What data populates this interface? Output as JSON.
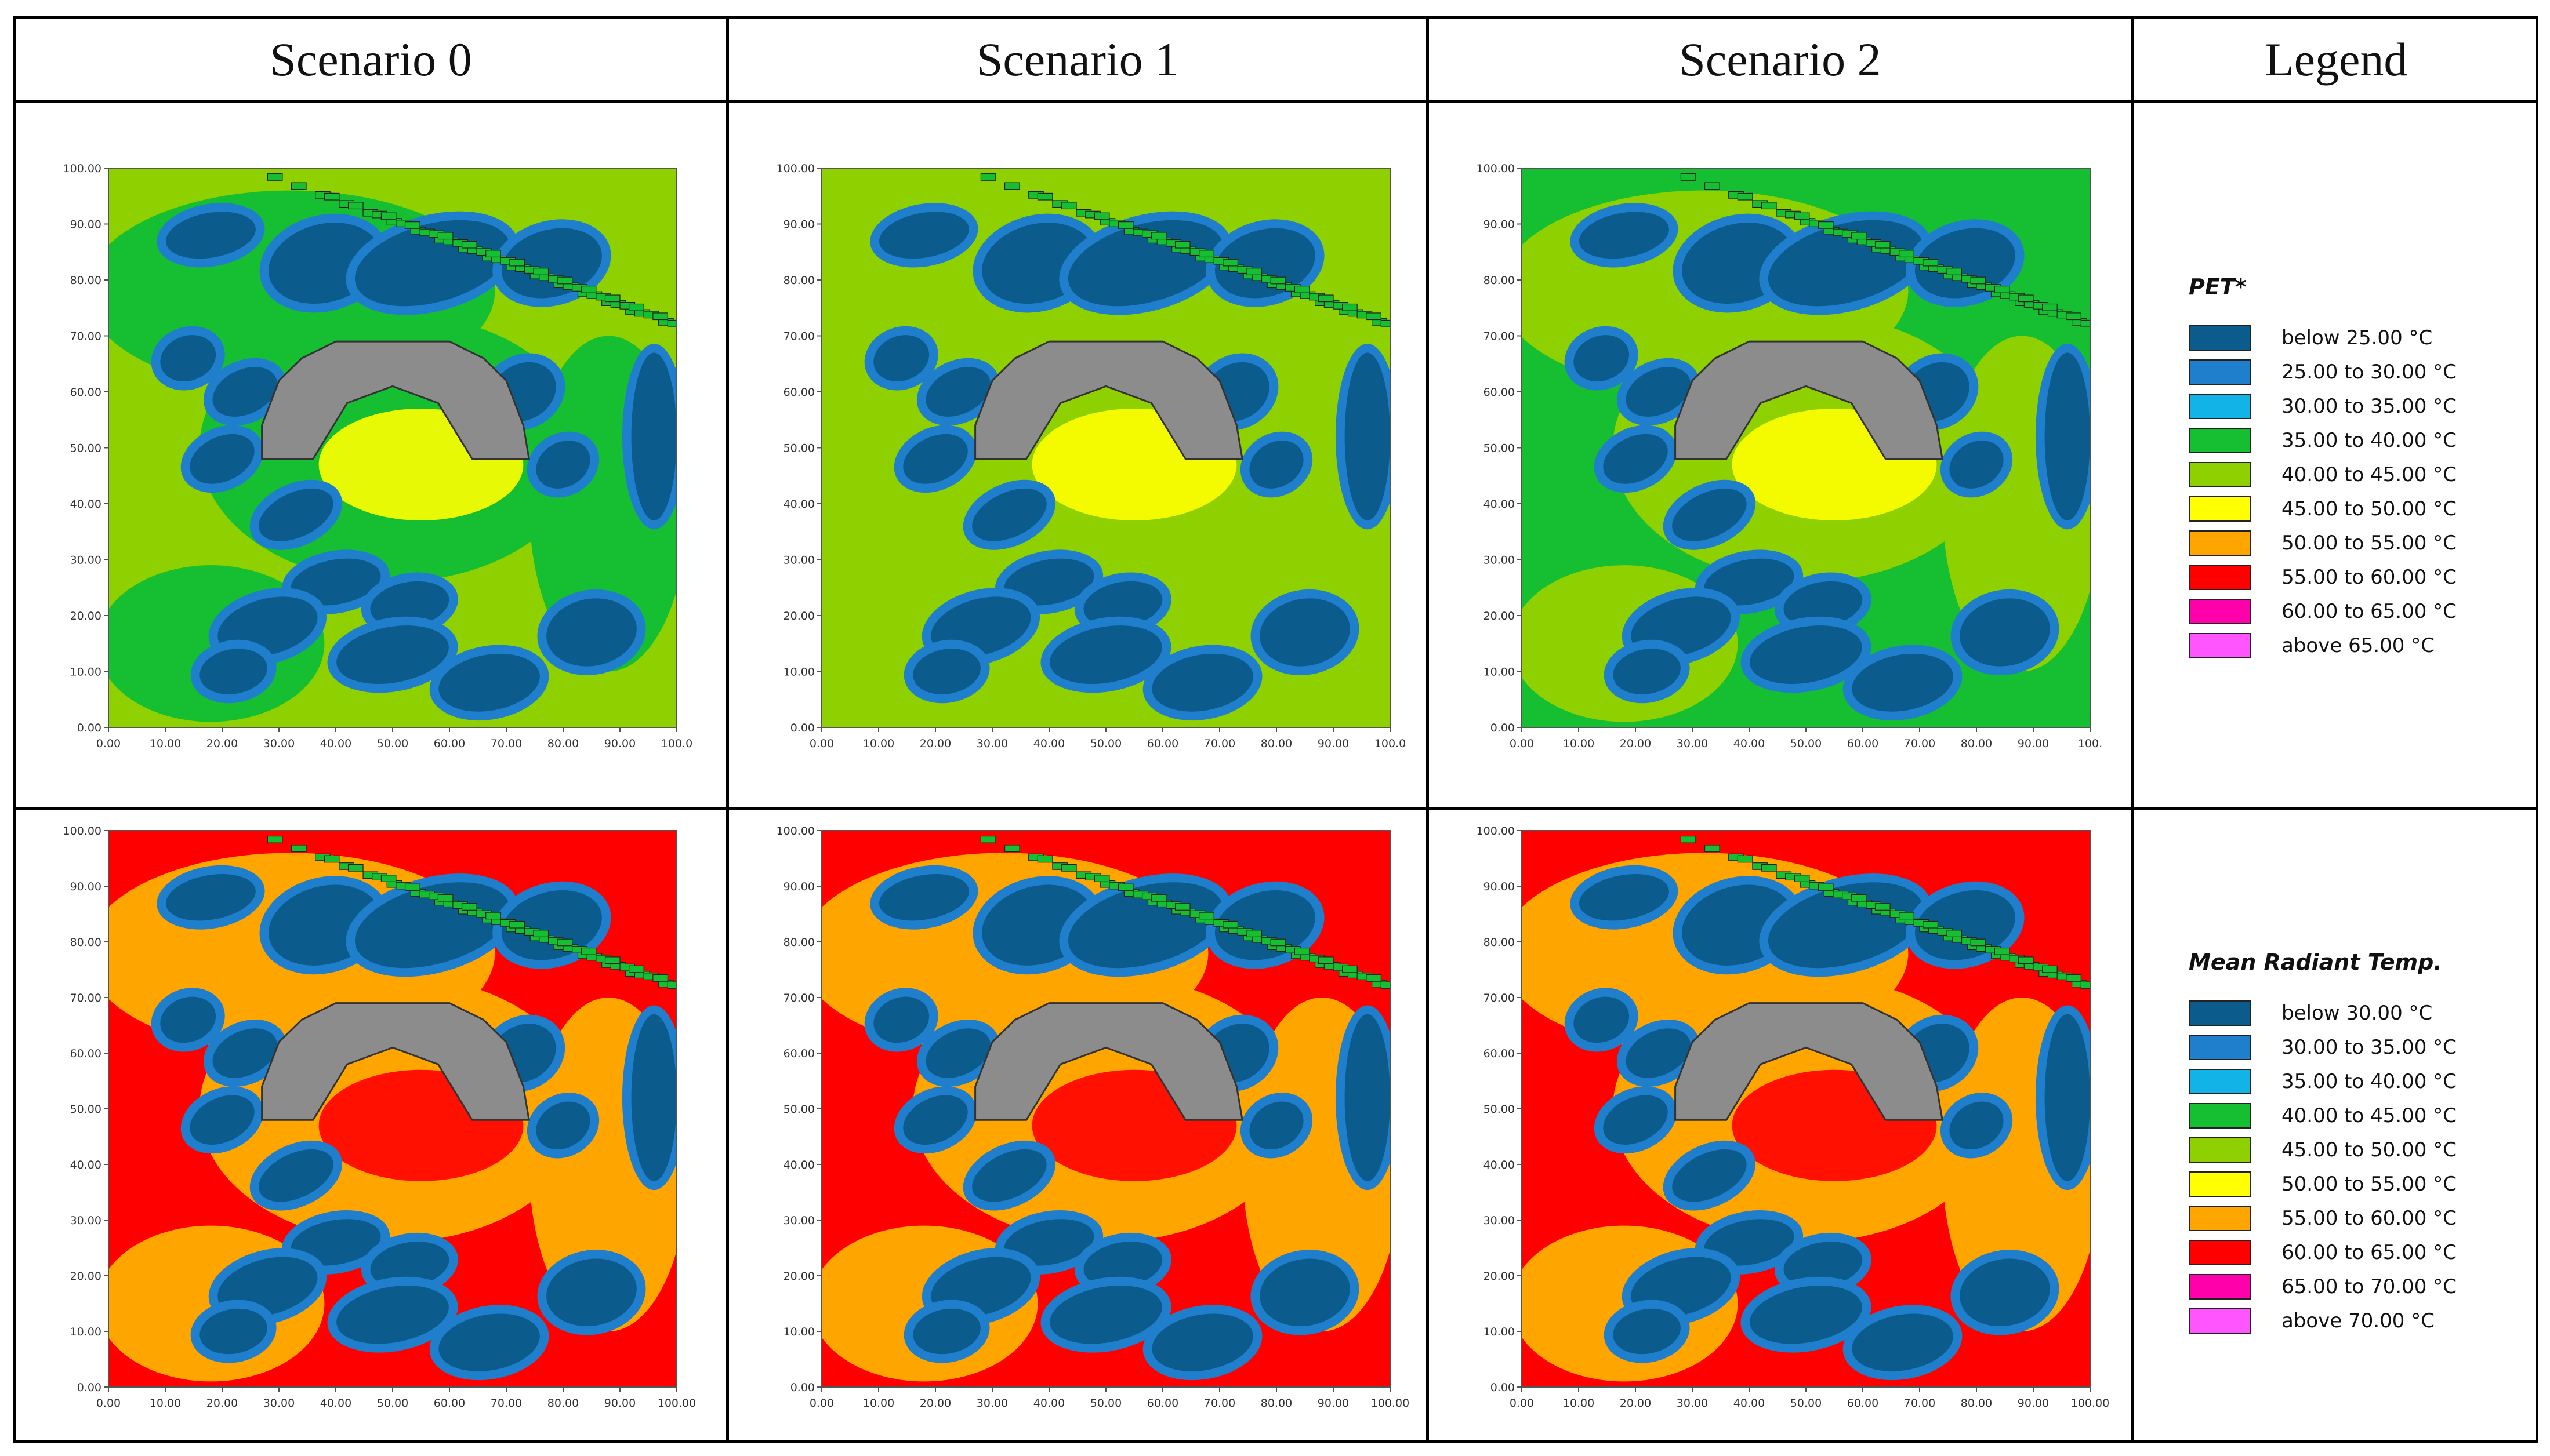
{
  "headers": [
    "Scenario 0",
    "Scenario 1",
    "Scenario 2",
    "Legend"
  ],
  "colors": {
    "building": "#8c8c8c",
    "pet": [
      "#0b5c8c",
      "#1f7fcc",
      "#12b4e8",
      "#16be32",
      "#8fd000",
      "#ffff00",
      "#ffa500",
      "#ff0000",
      "#ff00aa",
      "#ff55ff"
    ],
    "mrt": [
      "#0b5c8c",
      "#1f7fcc",
      "#12b4e8",
      "#16be32",
      "#8fd000",
      "#ffff00",
      "#ffa500",
      "#ff0000",
      "#ff00aa",
      "#ff55ff"
    ]
  },
  "legends": {
    "pet": {
      "title": "PET*",
      "items": [
        "below 25.00 °C",
        "25.00 to 30.00 °C",
        "30.00 to 35.00 °C",
        "35.00 to 40.00 °C",
        "40.00 to 45.00 °C",
        "45.00 to 50.00 °C",
        "50.00 to 55.00 °C",
        "55.00 to 60.00 °C",
        "60.00 to 65.00 °C",
        "above 65.00 °C"
      ]
    },
    "mrt": {
      "title": "Mean Radiant Temp.",
      "items": [
        "below 30.00 °C",
        "30.00 to 35.00 °C",
        "35.00 to 40.00 °C",
        "40.00 to 45.00 °C",
        "45.00 to 50.00 °C",
        "50.00 to 55.00 °C",
        "55.00 to 60.00 °C",
        "60.00 to 65.00 °C",
        "65.00 to 70.00 °C",
        "above 70.00 °C"
      ]
    }
  },
  "chart_data": [
    {
      "type": "heatmap",
      "variable": "pet",
      "scenario": "Scenario 0",
      "background": "#8fd000",
      "secondary": "#16be32",
      "hot": "#ffff00",
      "xlim": [
        0,
        100
      ],
      "ylim": [
        0,
        100
      ],
      "xticks": [
        "0.00",
        "10.00",
        "20.00",
        "30.00",
        "40.00",
        "50.00",
        "60.00",
        "70.00",
        "80.00",
        "90.00",
        "100.0"
      ],
      "yticks": [
        "0.00",
        "10.00",
        "20.00",
        "30.00",
        "40.00",
        "50.00",
        "60.00",
        "70.00",
        "80.00",
        "90.00",
        "100.00"
      ]
    },
    {
      "type": "heatmap",
      "variable": "pet",
      "scenario": "Scenario 1",
      "background": "#8fd000",
      "secondary": "#8fd000",
      "hot": "#ffff00",
      "xlim": [
        0,
        100
      ],
      "ylim": [
        0,
        100
      ],
      "xticks": [
        "0.00",
        "10.00",
        "20.00",
        "30.00",
        "40.00",
        "50.00",
        "60.00",
        "70.00",
        "80.00",
        "90.00",
        "100.0"
      ],
      "yticks": [
        "0.00",
        "10.00",
        "20.00",
        "30.00",
        "40.00",
        "50.00",
        "60.00",
        "70.00",
        "80.00",
        "90.00",
        "100.00"
      ]
    },
    {
      "type": "heatmap",
      "variable": "pet",
      "scenario": "Scenario 2",
      "background": "#16be32",
      "secondary": "#8fd000",
      "hot": "#ffff00",
      "xlim": [
        0,
        100
      ],
      "ylim": [
        0,
        100
      ],
      "xticks": [
        "0.00",
        "10.00",
        "20.00",
        "30.00",
        "40.00",
        "50.00",
        "60.00",
        "70.00",
        "80.00",
        "90.00",
        "100."
      ],
      "yticks": [
        "0.00",
        "10.00",
        "20.00",
        "30.00",
        "40.00",
        "50.00",
        "60.00",
        "70.00",
        "80.00",
        "90.00",
        "100.00"
      ]
    },
    {
      "type": "heatmap",
      "variable": "mrt",
      "scenario": "Scenario 0",
      "background": "#ff0000",
      "secondary": "#ffa500",
      "hot": "#ff0000",
      "xlim": [
        0,
        100
      ],
      "ylim": [
        0,
        100
      ],
      "xticks": [
        "0.00",
        "10.00",
        "20.00",
        "30.00",
        "40.00",
        "50.00",
        "60.00",
        "70.00",
        "80.00",
        "90.00",
        "100.00"
      ],
      "yticks": [
        "0.00",
        "10.00",
        "20.00",
        "30.00",
        "40.00",
        "50.00",
        "60.00",
        "70.00",
        "80.00",
        "90.00",
        "100.00"
      ]
    },
    {
      "type": "heatmap",
      "variable": "mrt",
      "scenario": "Scenario 1",
      "background": "#ff0000",
      "secondary": "#ffa500",
      "hot": "#ff0000",
      "xlim": [
        0,
        100
      ],
      "ylim": [
        0,
        100
      ],
      "xticks": [
        "0.00",
        "10.00",
        "20.00",
        "30.00",
        "40.00",
        "50.00",
        "60.00",
        "70.00",
        "80.00",
        "90.00",
        "100.00"
      ],
      "yticks": [
        "0.00",
        "10.00",
        "20.00",
        "30.00",
        "40.00",
        "50.00",
        "60.00",
        "70.00",
        "80.00",
        "90.00",
        "100.00"
      ]
    },
    {
      "type": "heatmap",
      "variable": "mrt",
      "scenario": "Scenario 2",
      "background": "#ff0000",
      "secondary": "#ffa500",
      "hot": "#ff0000",
      "xlim": [
        0,
        100
      ],
      "ylim": [
        0,
        100
      ],
      "xticks": [
        "0.00",
        "10.00",
        "20.00",
        "30.00",
        "40.00",
        "50.00",
        "60.00",
        "70.00",
        "80.00",
        "90.00",
        "100.00"
      ],
      "yticks": [
        "0.00",
        "10.00",
        "20.00",
        "30.00",
        "40.00",
        "50.00",
        "60.00",
        "70.00",
        "80.00",
        "90.00",
        "100.00"
      ]
    }
  ]
}
